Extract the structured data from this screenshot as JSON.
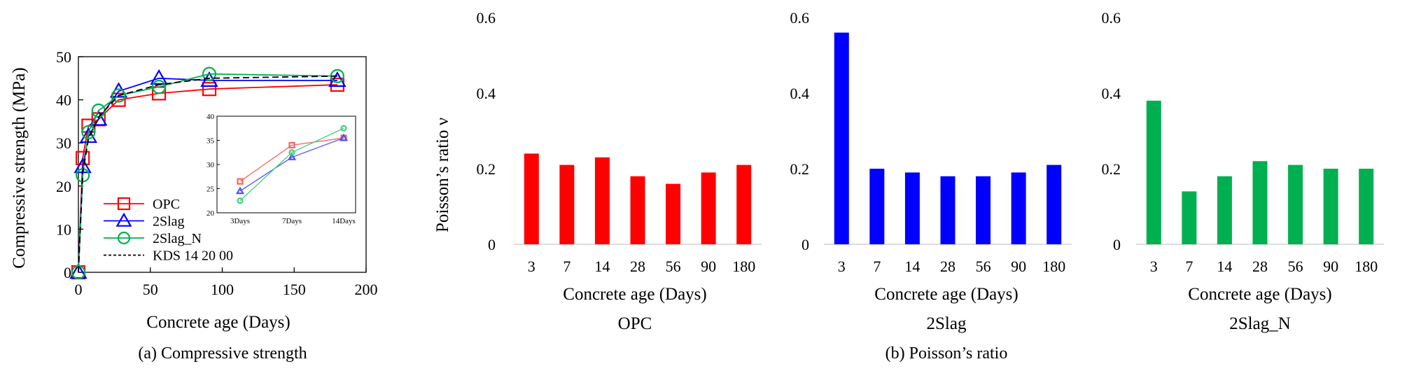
{
  "captions": {
    "a": "(a) Compressive strength",
    "b": "(b) Poisson’s ratio"
  },
  "colors": {
    "opc": "#ff0000",
    "slag": "#0000ff",
    "slagn": "#00b050",
    "kds": "#000000"
  },
  "chart_data": [
    {
      "type": "line",
      "xlabel": "Concrete age (Days)",
      "ylabel": "Compressive strength (MPa)",
      "xlim": [
        0,
        200
      ],
      "ylim": [
        0,
        50
      ],
      "xticks": [
        0,
        50,
        100,
        150,
        200
      ],
      "yticks": [
        0,
        10,
        20,
        30,
        40,
        50
      ],
      "legend_position": "bottom-left",
      "series": [
        {
          "name": "OPC",
          "marker": "square",
          "color": "#ff0000",
          "x": [
            0,
            3,
            7,
            14,
            28,
            56,
            91,
            180
          ],
          "y": [
            0,
            26.5,
            34,
            35.5,
            40,
            41.5,
            42.5,
            43.5
          ]
        },
        {
          "name": "2Slag",
          "marker": "triangle",
          "color": "#0000ff",
          "x": [
            0,
            3,
            7,
            14,
            28,
            56,
            91,
            180
          ],
          "y": [
            0,
            24.5,
            31.5,
            35.5,
            42,
            45,
            44.5,
            44.5
          ]
        },
        {
          "name": "2Slag_N",
          "marker": "circle",
          "color": "#00b050",
          "x": [
            0,
            3,
            7,
            14,
            28,
            56,
            91,
            180
          ],
          "y": [
            0,
            22.5,
            32.5,
            37.5,
            41,
            43,
            46,
            45.5
          ]
        },
        {
          "name": "KDS 14 20 00",
          "marker": "none",
          "color": "#000000",
          "dashed": true,
          "x": [
            0,
            3,
            7,
            14,
            28,
            56,
            91,
            180
          ],
          "y": [
            0,
            23,
            31,
            36,
            41,
            43.5,
            45,
            45.5
          ]
        }
      ],
      "inset": {
        "type": "line",
        "categories": [
          "3Days",
          "7Days",
          "14Days"
        ],
        "ylim": [
          20,
          40
        ],
        "yticks": [
          20,
          25,
          30,
          35,
          40
        ],
        "series": [
          {
            "name": "OPC",
            "values": [
              26.5,
              34,
              35.5
            ]
          },
          {
            "name": "2Slag",
            "values": [
              24.5,
              31.5,
              35.5
            ]
          },
          {
            "name": "2Slag_N",
            "values": [
              22.5,
              32.5,
              37.5
            ]
          }
        ]
      }
    },
    {
      "type": "bar",
      "title": "OPC",
      "xlabel": "Concrete age (Days)",
      "ylabel": "Poisson’s ratio ν",
      "categories": [
        "3",
        "7",
        "14",
        "28",
        "56",
        "90",
        "180"
      ],
      "values": [
        0.24,
        0.21,
        0.23,
        0.18,
        0.16,
        0.19,
        0.21
      ],
      "ylim": [
        0,
        0.6
      ],
      "yticks": [
        "0",
        "0.2",
        "0.4",
        "0.6"
      ],
      "color": "#ff0000"
    },
    {
      "type": "bar",
      "title": "2Slag",
      "xlabel": "Concrete age (Days)",
      "categories": [
        "3",
        "7",
        "14",
        "28",
        "56",
        "90",
        "180"
      ],
      "values": [
        0.56,
        0.2,
        0.19,
        0.18,
        0.18,
        0.19,
        0.21
      ],
      "ylim": [
        0,
        0.6
      ],
      "yticks": [
        "0",
        "0.2",
        "0.4",
        "0.6"
      ],
      "color": "#0000ff"
    },
    {
      "type": "bar",
      "title": "2Slag_N",
      "xlabel": "Concrete age (Days)",
      "categories": [
        "3",
        "7",
        "14",
        "28",
        "56",
        "90",
        "180"
      ],
      "values": [
        0.38,
        0.14,
        0.18,
        0.22,
        0.21,
        0.2,
        0.2
      ],
      "ylim": [
        0,
        0.6
      ],
      "yticks": [
        "0",
        "0.2",
        "0.4",
        "0.6"
      ],
      "color": "#00b050"
    }
  ]
}
